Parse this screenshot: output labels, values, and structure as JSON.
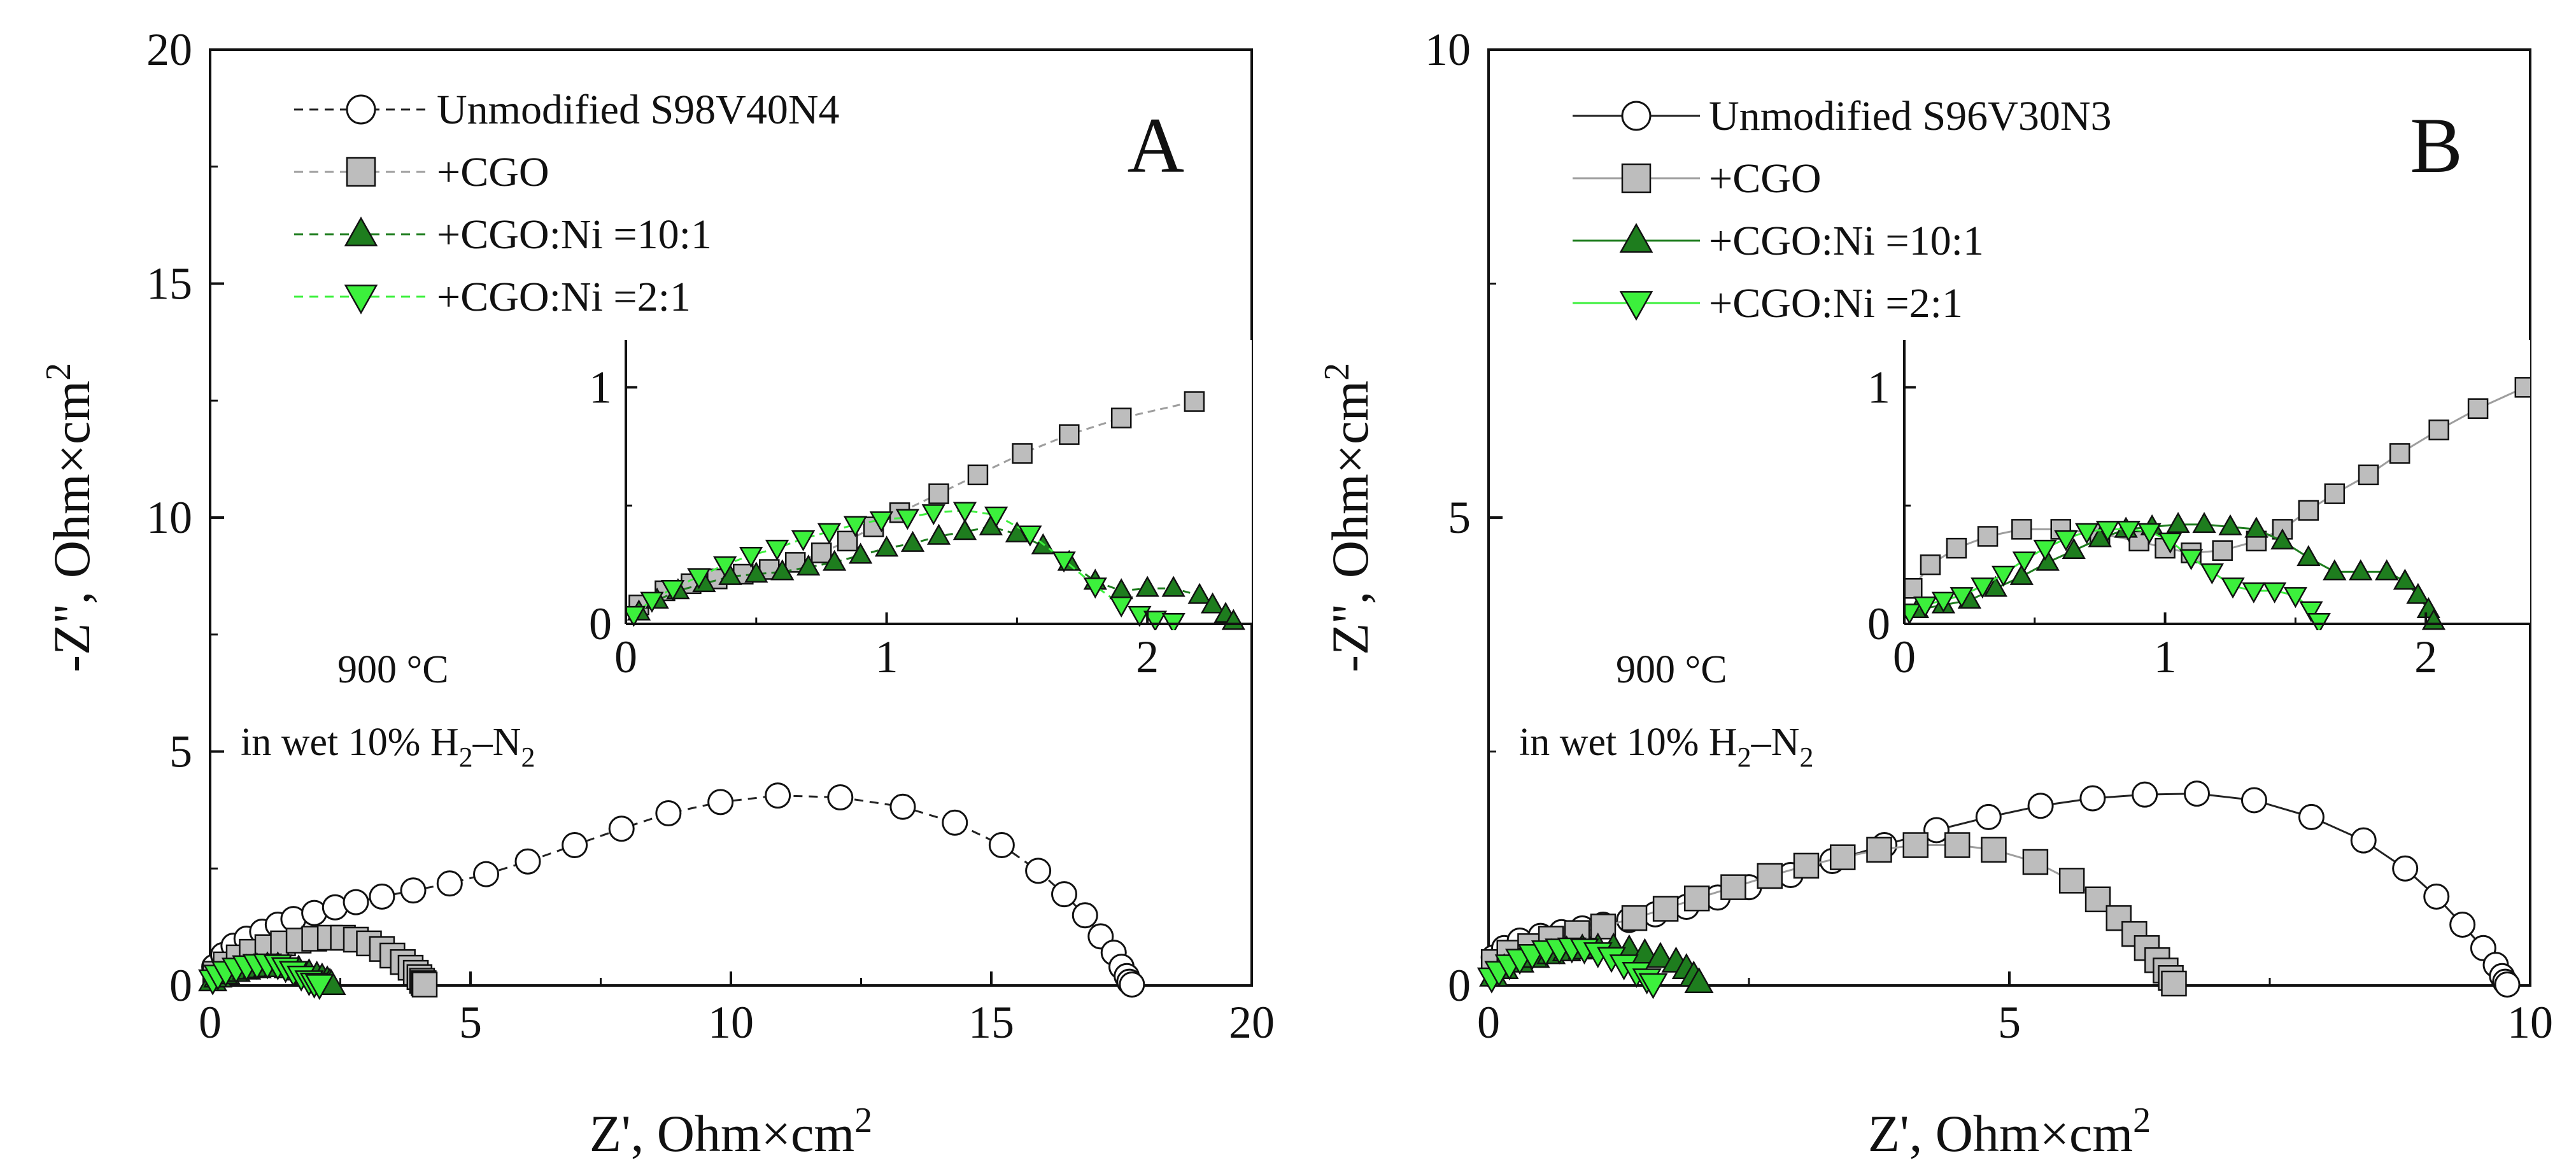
{
  "chart_data": [
    {
      "panel": "A",
      "type": "scatter",
      "panel_label": "A",
      "xlabel": "Z', Ohm×cm",
      "xlabel_sup": "2",
      "ylabel": "-Z'', Ohm×cm",
      "ylabel_sup": "2",
      "xlim": [
        0,
        20
      ],
      "ylim": [
        0,
        20
      ],
      "xticks": [
        0,
        5,
        10,
        15,
        20
      ],
      "yticks": [
        0,
        5,
        10,
        15,
        20
      ],
      "condition_lines": [
        "900 °C",
        "in wet 10% H",
        "2",
        "–N",
        "2"
      ],
      "legend": [
        {
          "label": "Unmodified S98V40N4",
          "marker": "circle",
          "fill": "#ffffff",
          "line": "#222222",
          "dash": true
        },
        {
          "label": "+CGO",
          "marker": "square",
          "fill": "#bdbdbd",
          "line": "#9e9e9e",
          "dash": true
        },
        {
          "label": "+CGO:Ni =10:1",
          "marker": "triangle-up",
          "fill": "#1e7d1e",
          "line": "#1e7d1e",
          "dash": true
        },
        {
          "label": "+CGO:Ni =2:1",
          "marker": "triangle-down",
          "fill": "#3cf03c",
          "line": "#3cf03c",
          "dash": true
        }
      ],
      "series": [
        {
          "name": "Unmodified S98V40N4",
          "x": [
            0.08,
            0.25,
            0.45,
            0.7,
            1.0,
            1.3,
            1.6,
            2.0,
            2.4,
            2.8,
            3.3,
            3.9,
            4.6,
            5.3,
            6.1,
            7.0,
            7.9,
            8.8,
            9.8,
            10.9,
            12.1,
            13.3,
            14.3,
            15.2,
            15.9,
            16.4,
            16.8,
            17.1,
            17.35,
            17.5,
            17.6,
            17.65,
            17.7
          ],
          "y": [
            0.4,
            0.65,
            0.85,
            1.0,
            1.15,
            1.3,
            1.42,
            1.55,
            1.67,
            1.78,
            1.9,
            2.03,
            2.18,
            2.38,
            2.65,
            3.0,
            3.35,
            3.68,
            3.92,
            4.06,
            4.02,
            3.82,
            3.48,
            3.0,
            2.45,
            1.95,
            1.5,
            1.05,
            0.7,
            0.4,
            0.2,
            0.08,
            0.02
          ]
        },
        {
          "name": "+CGO",
          "x": [
            0.1,
            0.3,
            0.55,
            0.8,
            1.1,
            1.4,
            1.7,
            2.0,
            2.3,
            2.55,
            2.8,
            3.05,
            3.3,
            3.5,
            3.7,
            3.85,
            3.95,
            4.02,
            4.07,
            4.1,
            4.12
          ],
          "y": [
            0.25,
            0.45,
            0.6,
            0.72,
            0.82,
            0.9,
            0.96,
            1.0,
            1.02,
            1.02,
            0.98,
            0.9,
            0.78,
            0.64,
            0.5,
            0.38,
            0.27,
            0.18,
            0.1,
            0.05,
            0.02
          ]
        },
        {
          "name": "+CGO:Ni =10:1",
          "x": [
            0.05,
            0.15,
            0.3,
            0.5,
            0.7,
            0.9,
            1.1,
            1.3,
            1.5,
            1.7,
            1.9,
            2.05,
            2.15,
            2.25,
            2.3,
            2.33
          ],
          "y": [
            0.1,
            0.18,
            0.25,
            0.3,
            0.35,
            0.38,
            0.4,
            0.4,
            0.38,
            0.33,
            0.25,
            0.2,
            0.16,
            0.1,
            0.05,
            0.02
          ]
        },
        {
          "name": "+CGO:Ni =2:1",
          "x": [
            0.05,
            0.15,
            0.3,
            0.5,
            0.7,
            0.9,
            1.1,
            1.3,
            1.45,
            1.6,
            1.75,
            1.9,
            2.0,
            2.1
          ],
          "y": [
            0.12,
            0.22,
            0.3,
            0.37,
            0.42,
            0.45,
            0.46,
            0.44,
            0.38,
            0.3,
            0.2,
            0.1,
            0.05,
            0.02
          ]
        }
      ],
      "inset": {
        "xlim": [
          0,
          2.4
        ],
        "ylim": [
          0,
          1.2
        ],
        "xticks": [
          0,
          1,
          2
        ],
        "yticks": [
          0,
          1
        ],
        "series": [
          {
            "name": "+CGO",
            "x": [
              0.05,
              0.15,
              0.25,
              0.35,
              0.45,
              0.55,
              0.65,
              0.75,
              0.85,
              0.95,
              1.05,
              1.2,
              1.35,
              1.52,
              1.7,
              1.9,
              2.18
            ],
            "y": [
              0.08,
              0.14,
              0.17,
              0.19,
              0.21,
              0.23,
              0.26,
              0.3,
              0.35,
              0.41,
              0.47,
              0.55,
              0.63,
              0.72,
              0.8,
              0.87,
              0.94
            ]
          },
          {
            "name": "+CGO:Ni =10:1",
            "x": [
              0.05,
              0.12,
              0.2,
              0.3,
              0.4,
              0.5,
              0.6,
              0.7,
              0.8,
              0.9,
              1.0,
              1.1,
              1.2,
              1.3,
              1.4,
              1.5,
              1.6,
              1.7,
              1.8,
              1.9,
              2.0,
              2.1,
              2.2,
              2.25,
              2.3,
              2.33
            ],
            "y": [
              0.05,
              0.1,
              0.14,
              0.17,
              0.2,
              0.21,
              0.22,
              0.24,
              0.26,
              0.29,
              0.32,
              0.34,
              0.37,
              0.39,
              0.41,
              0.38,
              0.33,
              0.26,
              0.18,
              0.14,
              0.15,
              0.15,
              0.12,
              0.08,
              0.04,
              0.01
            ]
          },
          {
            "name": "+CGO:Ni =2:1",
            "x": [
              0.03,
              0.1,
              0.18,
              0.28,
              0.38,
              0.48,
              0.58,
              0.68,
              0.78,
              0.88,
              0.98,
              1.08,
              1.18,
              1.3,
              1.42,
              1.55,
              1.68,
              1.8,
              1.9,
              1.97,
              2.03,
              2.1
            ],
            "y": [
              0.04,
              0.1,
              0.15,
              0.2,
              0.25,
              0.29,
              0.32,
              0.36,
              0.39,
              0.42,
              0.44,
              0.45,
              0.47,
              0.48,
              0.46,
              0.38,
              0.27,
              0.16,
              0.08,
              0.04,
              0.02,
              0.01
            ]
          }
        ]
      }
    },
    {
      "panel": "B",
      "type": "scatter",
      "panel_label": "B",
      "xlabel": "Z', Ohm×cm",
      "xlabel_sup": "2",
      "ylabel": "-Z'', Ohm×cm",
      "ylabel_sup": "2",
      "xlim": [
        0,
        10
      ],
      "ylim": [
        0,
        10
      ],
      "xticks": [
        0,
        5,
        10
      ],
      "yticks": [
        0,
        5,
        10
      ],
      "condition_lines": [
        "900 °C",
        "in wet 10% H",
        "2",
        "–N",
        "2"
      ],
      "legend": [
        {
          "label": "Unmodified S96V30N3",
          "marker": "circle",
          "fill": "#ffffff",
          "line": "#222222",
          "dash": false
        },
        {
          "label": "+CGO",
          "marker": "square",
          "fill": "#bdbdbd",
          "line": "#9e9e9e",
          "dash": false
        },
        {
          "label": "+CGO:Ni =10:1",
          "marker": "triangle-up",
          "fill": "#1e7d1e",
          "line": "#1e7d1e",
          "dash": false
        },
        {
          "label": "+CGO:Ni =2:1",
          "marker": "triangle-down",
          "fill": "#3cf03c",
          "line": "#3cf03c",
          "dash": false
        }
      ],
      "series": [
        {
          "name": "Unmodified S96V30N3",
          "x": [
            0.05,
            0.15,
            0.3,
            0.5,
            0.7,
            0.9,
            1.1,
            1.35,
            1.6,
            1.9,
            2.2,
            2.5,
            2.9,
            3.3,
            3.8,
            4.3,
            4.8,
            5.3,
            5.8,
            6.3,
            6.8,
            7.35,
            7.9,
            8.4,
            8.8,
            9.1,
            9.35,
            9.55,
            9.67,
            9.73,
            9.76,
            9.78
          ],
          "y": [
            0.3,
            0.4,
            0.48,
            0.53,
            0.57,
            0.61,
            0.65,
            0.7,
            0.76,
            0.84,
            0.94,
            1.05,
            1.18,
            1.33,
            1.5,
            1.66,
            1.8,
            1.92,
            2.0,
            2.04,
            2.05,
            1.98,
            1.8,
            1.55,
            1.25,
            0.95,
            0.65,
            0.4,
            0.22,
            0.1,
            0.04,
            0.01
          ]
        },
        {
          "name": "+CGO",
          "x": [
            0.05,
            0.2,
            0.4,
            0.6,
            0.85,
            1.1,
            1.4,
            1.7,
            2.0,
            2.35,
            2.7,
            3.05,
            3.4,
            3.75,
            4.1,
            4.5,
            4.85,
            5.25,
            5.6,
            5.85,
            6.05,
            6.2,
            6.32,
            6.42,
            6.5,
            6.55,
            6.58
          ],
          "y": [
            0.25,
            0.35,
            0.42,
            0.5,
            0.56,
            0.63,
            0.72,
            0.82,
            0.93,
            1.05,
            1.17,
            1.28,
            1.37,
            1.45,
            1.5,
            1.5,
            1.45,
            1.32,
            1.12,
            0.92,
            0.72,
            0.55,
            0.4,
            0.27,
            0.16,
            0.08,
            0.02
          ]
        },
        {
          "name": "+CGO:Ni =10:1",
          "x": [
            0.05,
            0.15,
            0.3,
            0.45,
            0.6,
            0.75,
            0.9,
            1.05,
            1.2,
            1.35,
            1.5,
            1.65,
            1.8,
            1.9,
            1.97,
            2.02
          ],
          "y": [
            0.1,
            0.18,
            0.25,
            0.3,
            0.34,
            0.37,
            0.39,
            0.4,
            0.4,
            0.38,
            0.34,
            0.3,
            0.25,
            0.18,
            0.1,
            0.03
          ]
        },
        {
          "name": "+CGO:Ni =2:1",
          "x": [
            0.03,
            0.1,
            0.2,
            0.3,
            0.42,
            0.55,
            0.68,
            0.8,
            0.92,
            1.05,
            1.18,
            1.3,
            1.42,
            1.52,
            1.58
          ],
          "y": [
            0.08,
            0.15,
            0.22,
            0.28,
            0.33,
            0.37,
            0.39,
            0.4,
            0.39,
            0.35,
            0.3,
            0.22,
            0.14,
            0.07,
            0.02
          ]
        }
      ],
      "inset": {
        "xlim": [
          0,
          2.4
        ],
        "ylim": [
          0,
          1.2
        ],
        "xticks": [
          0,
          1,
          2
        ],
        "yticks": [
          0,
          1
        ],
        "series": [
          {
            "name": "+CGO",
            "x": [
              0.03,
              0.1,
              0.2,
              0.32,
              0.45,
              0.6,
              0.75,
              0.9,
              1.0,
              1.1,
              1.22,
              1.35,
              1.45,
              1.55,
              1.65,
              1.78,
              1.9,
              2.05,
              2.2,
              2.38
            ],
            "y": [
              0.15,
              0.25,
              0.32,
              0.37,
              0.4,
              0.4,
              0.38,
              0.35,
              0.32,
              0.3,
              0.31,
              0.35,
              0.4,
              0.48,
              0.55,
              0.63,
              0.72,
              0.82,
              0.91,
              1.0
            ]
          },
          {
            "name": "+CGO:Ni =10:1",
            "x": [
              0.05,
              0.15,
              0.25,
              0.35,
              0.45,
              0.55,
              0.65,
              0.75,
              0.85,
              0.95,
              1.05,
              1.15,
              1.25,
              1.35,
              1.45,
              1.55,
              1.65,
              1.75,
              1.85,
              1.92,
              1.97,
              2.01,
              2.03
            ],
            "y": [
              0.06,
              0.08,
              0.1,
              0.15,
              0.2,
              0.26,
              0.31,
              0.36,
              0.4,
              0.41,
              0.42,
              0.42,
              0.41,
              0.4,
              0.35,
              0.28,
              0.22,
              0.22,
              0.22,
              0.18,
              0.12,
              0.06,
              0.01
            ]
          },
          {
            "name": "+CGO:Ni =2:1",
            "x": [
              0.02,
              0.08,
              0.15,
              0.22,
              0.3,
              0.38,
              0.46,
              0.54,
              0.62,
              0.7,
              0.78,
              0.86,
              0.94,
              1.02,
              1.1,
              1.18,
              1.26,
              1.34,
              1.42,
              1.5,
              1.56,
              1.59
            ],
            "y": [
              0.05,
              0.08,
              0.1,
              0.12,
              0.16,
              0.21,
              0.27,
              0.32,
              0.36,
              0.39,
              0.4,
              0.4,
              0.39,
              0.35,
              0.28,
              0.22,
              0.16,
              0.14,
              0.14,
              0.12,
              0.06,
              0.01
            ]
          }
        ]
      }
    }
  ]
}
